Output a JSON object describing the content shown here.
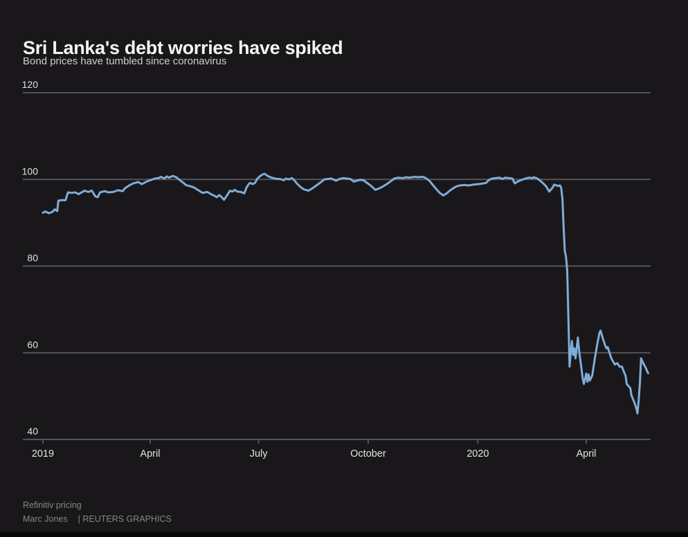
{
  "page": {
    "title": "Sri Lanka's debt worries have spiked",
    "subtitle": "Bond prices have tumbled since coronavirus",
    "source": "Refinitiv pricing",
    "byline": "Marc Jones",
    "credit": "| REUTERS GRAPHICS"
  },
  "chart_data": {
    "type": "line",
    "title": "Sri Lanka's debt worries have spiked",
    "subtitle": "Bond prices have tumbled since coronavirus",
    "xlabel": "",
    "ylabel": "",
    "ylim": [
      40,
      120
    ],
    "y_ticks": [
      120,
      100,
      80,
      60,
      40
    ],
    "x_ticks": [
      {
        "label": "2019",
        "date": "2019-01-01"
      },
      {
        "label": "April",
        "date": "2019-04-01"
      },
      {
        "label": "July",
        "date": "2019-07-01"
      },
      {
        "label": "October",
        "date": "2019-10-01"
      },
      {
        "label": "2020",
        "date": "2020-01-01"
      },
      {
        "label": "April",
        "date": "2020-04-01"
      }
    ],
    "x_range": [
      "2019-01-01",
      "2020-05-23"
    ],
    "grid": "horizontal",
    "legend": "none",
    "colors": {
      "background": "#1a171a",
      "line": "#7fadd8",
      "grid": "#54545a",
      "axis_text": "#e3e3e3",
      "title": "#f4f4f4",
      "subtitle": "#cfcfcf",
      "footer": "#878787",
      "bottom_bar": "#070707"
    },
    "series": [
      {
        "name": "Bond price",
        "points": [
          [
            "2019-01-01",
            92.3
          ],
          [
            "2019-01-03",
            92.6
          ],
          [
            "2019-01-06",
            92.2
          ],
          [
            "2019-01-09",
            92.5
          ],
          [
            "2019-01-11",
            93.1
          ],
          [
            "2019-01-13",
            92.7
          ],
          [
            "2019-01-14",
            95.1
          ],
          [
            "2019-01-17",
            95.2
          ],
          [
            "2019-01-20",
            95.2
          ],
          [
            "2019-01-22",
            97.0
          ],
          [
            "2019-01-25",
            96.9
          ],
          [
            "2019-01-28",
            97.0
          ],
          [
            "2019-01-31",
            96.6
          ],
          [
            "2019-02-03",
            97.1
          ],
          [
            "2019-02-05",
            97.4
          ],
          [
            "2019-02-08",
            97.1
          ],
          [
            "2019-02-11",
            97.4
          ],
          [
            "2019-02-14",
            96.1
          ],
          [
            "2019-02-16",
            95.9
          ],
          [
            "2019-02-18",
            97.0
          ],
          [
            "2019-02-22",
            97.3
          ],
          [
            "2019-02-25",
            97.0
          ],
          [
            "2019-03-01",
            97.1
          ],
          [
            "2019-03-05",
            97.5
          ],
          [
            "2019-03-09",
            97.3
          ],
          [
            "2019-03-11",
            98.0
          ],
          [
            "2019-03-15",
            98.7
          ],
          [
            "2019-03-18",
            99.1
          ],
          [
            "2019-03-22",
            99.4
          ],
          [
            "2019-03-25",
            98.9
          ],
          [
            "2019-03-29",
            99.5
          ],
          [
            "2019-04-01",
            99.8
          ],
          [
            "2019-04-05",
            100.2
          ],
          [
            "2019-04-08",
            100.3
          ],
          [
            "2019-04-10",
            100.6
          ],
          [
            "2019-04-13",
            100.2
          ],
          [
            "2019-04-15",
            100.7
          ],
          [
            "2019-04-17",
            100.4
          ],
          [
            "2019-04-20",
            100.8
          ],
          [
            "2019-04-23",
            100.5
          ],
          [
            "2019-04-26",
            99.8
          ],
          [
            "2019-04-29",
            99.2
          ],
          [
            "2019-05-01",
            98.7
          ],
          [
            "2019-05-05",
            98.4
          ],
          [
            "2019-05-08",
            98.1
          ],
          [
            "2019-05-12",
            97.4
          ],
          [
            "2019-05-15",
            96.9
          ],
          [
            "2019-05-19",
            97.1
          ],
          [
            "2019-05-22",
            96.6
          ],
          [
            "2019-05-25",
            96.2
          ],
          [
            "2019-05-27",
            95.9
          ],
          [
            "2019-05-29",
            96.4
          ],
          [
            "2019-05-31",
            95.9
          ],
          [
            "2019-06-02",
            95.3
          ],
          [
            "2019-06-05",
            96.5
          ],
          [
            "2019-06-07",
            97.4
          ],
          [
            "2019-06-09",
            97.2
          ],
          [
            "2019-06-11",
            97.6
          ],
          [
            "2019-06-13",
            97.2
          ],
          [
            "2019-06-16",
            97.1
          ],
          [
            "2019-06-19",
            96.8
          ],
          [
            "2019-06-21",
            98.2
          ],
          [
            "2019-06-23",
            99.0
          ],
          [
            "2019-06-24",
            99.2
          ],
          [
            "2019-06-26",
            98.9
          ],
          [
            "2019-06-28",
            99.2
          ],
          [
            "2019-06-30",
            100.2
          ],
          [
            "2019-07-02",
            100.7
          ],
          [
            "2019-07-04",
            101.1
          ],
          [
            "2019-07-06",
            101.3
          ],
          [
            "2019-07-08",
            100.9
          ],
          [
            "2019-07-10",
            100.6
          ],
          [
            "2019-07-12",
            100.4
          ],
          [
            "2019-07-15",
            100.2
          ],
          [
            "2019-07-17",
            100.1
          ],
          [
            "2019-07-19",
            100.1
          ],
          [
            "2019-07-22",
            99.8
          ],
          [
            "2019-07-24",
            100.2
          ],
          [
            "2019-07-26",
            100.0
          ],
          [
            "2019-07-29",
            100.3
          ],
          [
            "2019-07-31",
            99.8
          ],
          [
            "2019-08-02",
            99.1
          ],
          [
            "2019-08-05",
            98.3
          ],
          [
            "2019-08-08",
            97.7
          ],
          [
            "2019-08-12",
            97.4
          ],
          [
            "2019-08-16",
            98.1
          ],
          [
            "2019-08-20",
            98.9
          ],
          [
            "2019-08-23",
            99.5
          ],
          [
            "2019-08-25",
            100.0
          ],
          [
            "2019-08-28",
            100.1
          ],
          [
            "2019-08-31",
            100.2
          ],
          [
            "2019-09-04",
            99.7
          ],
          [
            "2019-09-07",
            100.1
          ],
          [
            "2019-09-10",
            100.3
          ],
          [
            "2019-09-13",
            100.2
          ],
          [
            "2019-09-16",
            100.1
          ],
          [
            "2019-09-19",
            99.5
          ],
          [
            "2019-09-24",
            99.9
          ],
          [
            "2019-09-27",
            99.8
          ],
          [
            "2019-09-29",
            99.4
          ],
          [
            "2019-10-03",
            98.6
          ],
          [
            "2019-10-07",
            97.6
          ],
          [
            "2019-10-10",
            97.9
          ],
          [
            "2019-10-13",
            98.3
          ],
          [
            "2019-10-17",
            99.0
          ],
          [
            "2019-10-20",
            99.6
          ],
          [
            "2019-10-23",
            100.2
          ],
          [
            "2019-10-26",
            100.4
          ],
          [
            "2019-10-30",
            100.3
          ],
          [
            "2019-11-02",
            100.5
          ],
          [
            "2019-11-05",
            100.4
          ],
          [
            "2019-11-09",
            100.6
          ],
          [
            "2019-11-12",
            100.5
          ],
          [
            "2019-11-16",
            100.6
          ],
          [
            "2019-11-19",
            100.2
          ],
          [
            "2019-11-22",
            99.5
          ],
          [
            "2019-11-24",
            98.8
          ],
          [
            "2019-11-27",
            97.8
          ],
          [
            "2019-11-30",
            96.9
          ],
          [
            "2019-12-03",
            96.3
          ],
          [
            "2019-12-06",
            96.8
          ],
          [
            "2019-12-08",
            97.3
          ],
          [
            "2019-12-11",
            97.9
          ],
          [
            "2019-12-14",
            98.4
          ],
          [
            "2019-12-17",
            98.6
          ],
          [
            "2019-12-21",
            98.7
          ],
          [
            "2019-12-24",
            98.6
          ],
          [
            "2019-12-28",
            98.8
          ],
          [
            "2020-01-01",
            98.9
          ],
          [
            "2020-01-04",
            99.0
          ],
          [
            "2020-01-08",
            99.2
          ],
          [
            "2020-01-10",
            99.8
          ],
          [
            "2020-01-13",
            100.2
          ],
          [
            "2020-01-16",
            100.3
          ],
          [
            "2020-01-19",
            100.4
          ],
          [
            "2020-01-22",
            100.1
          ],
          [
            "2020-01-24",
            100.4
          ],
          [
            "2020-01-27",
            100.3
          ],
          [
            "2020-01-30",
            100.2
          ],
          [
            "2020-02-01",
            99.1
          ],
          [
            "2020-02-04",
            99.6
          ],
          [
            "2020-02-07",
            99.9
          ],
          [
            "2020-02-10",
            100.2
          ],
          [
            "2020-02-13",
            100.4
          ],
          [
            "2020-02-16",
            100.3
          ],
          [
            "2020-02-17",
            100.5
          ],
          [
            "2020-02-20",
            100.2
          ],
          [
            "2020-02-21",
            100.0
          ],
          [
            "2020-02-24",
            99.3
          ],
          [
            "2020-02-27",
            98.5
          ],
          [
            "2020-03-01",
            97.2
          ],
          [
            "2020-03-04",
            98.2
          ],
          [
            "2020-03-05",
            98.8
          ],
          [
            "2020-03-08",
            98.5
          ],
          [
            "2020-03-10",
            98.6
          ],
          [
            "2020-03-11",
            98.0
          ],
          [
            "2020-03-12",
            95.5
          ],
          [
            "2020-03-13",
            89.0
          ],
          [
            "2020-03-14",
            83.5
          ],
          [
            "2020-03-15",
            82.2
          ],
          [
            "2020-03-16",
            79.0
          ],
          [
            "2020-03-17",
            68.0
          ],
          [
            "2020-03-18",
            56.8
          ],
          [
            "2020-03-19",
            60.0
          ],
          [
            "2020-03-20",
            62.7
          ],
          [
            "2020-03-21",
            59.5
          ],
          [
            "2020-03-22",
            61.0
          ],
          [
            "2020-03-23",
            58.7
          ],
          [
            "2020-03-25",
            63.5
          ],
          [
            "2020-03-26",
            60.4
          ],
          [
            "2020-03-28",
            56.3
          ],
          [
            "2020-03-29",
            54.1
          ],
          [
            "2020-03-30",
            52.8
          ],
          [
            "2020-04-01",
            55.2
          ],
          [
            "2020-04-02",
            53.3
          ],
          [
            "2020-04-03",
            55.0
          ],
          [
            "2020-04-04",
            53.6
          ],
          [
            "2020-04-06",
            54.7
          ],
          [
            "2020-04-08",
            58.4
          ],
          [
            "2020-04-10",
            61.6
          ],
          [
            "2020-04-12",
            64.5
          ],
          [
            "2020-04-13",
            65.1
          ],
          [
            "2020-04-15",
            63.2
          ],
          [
            "2020-04-17",
            61.6
          ],
          [
            "2020-04-18",
            61.0
          ],
          [
            "2020-04-19",
            61.3
          ],
          [
            "2020-04-22",
            58.7
          ],
          [
            "2020-04-25",
            57.3
          ],
          [
            "2020-04-27",
            57.6
          ],
          [
            "2020-04-29",
            56.8
          ],
          [
            "2020-05-01",
            56.8
          ],
          [
            "2020-05-02",
            56.0
          ],
          [
            "2020-05-04",
            54.7
          ],
          [
            "2020-05-05",
            52.8
          ],
          [
            "2020-05-08",
            51.8
          ],
          [
            "2020-05-09",
            50.1
          ],
          [
            "2020-05-11",
            48.8
          ],
          [
            "2020-05-13",
            47.2
          ],
          [
            "2020-05-14",
            46.0
          ],
          [
            "2020-05-15",
            49.0
          ],
          [
            "2020-05-16",
            53.0
          ],
          [
            "2020-05-17",
            58.7
          ],
          [
            "2020-05-19",
            57.5
          ],
          [
            "2020-05-21",
            56.5
          ],
          [
            "2020-05-22",
            55.8
          ],
          [
            "2020-05-23",
            55.3
          ]
        ]
      }
    ]
  }
}
